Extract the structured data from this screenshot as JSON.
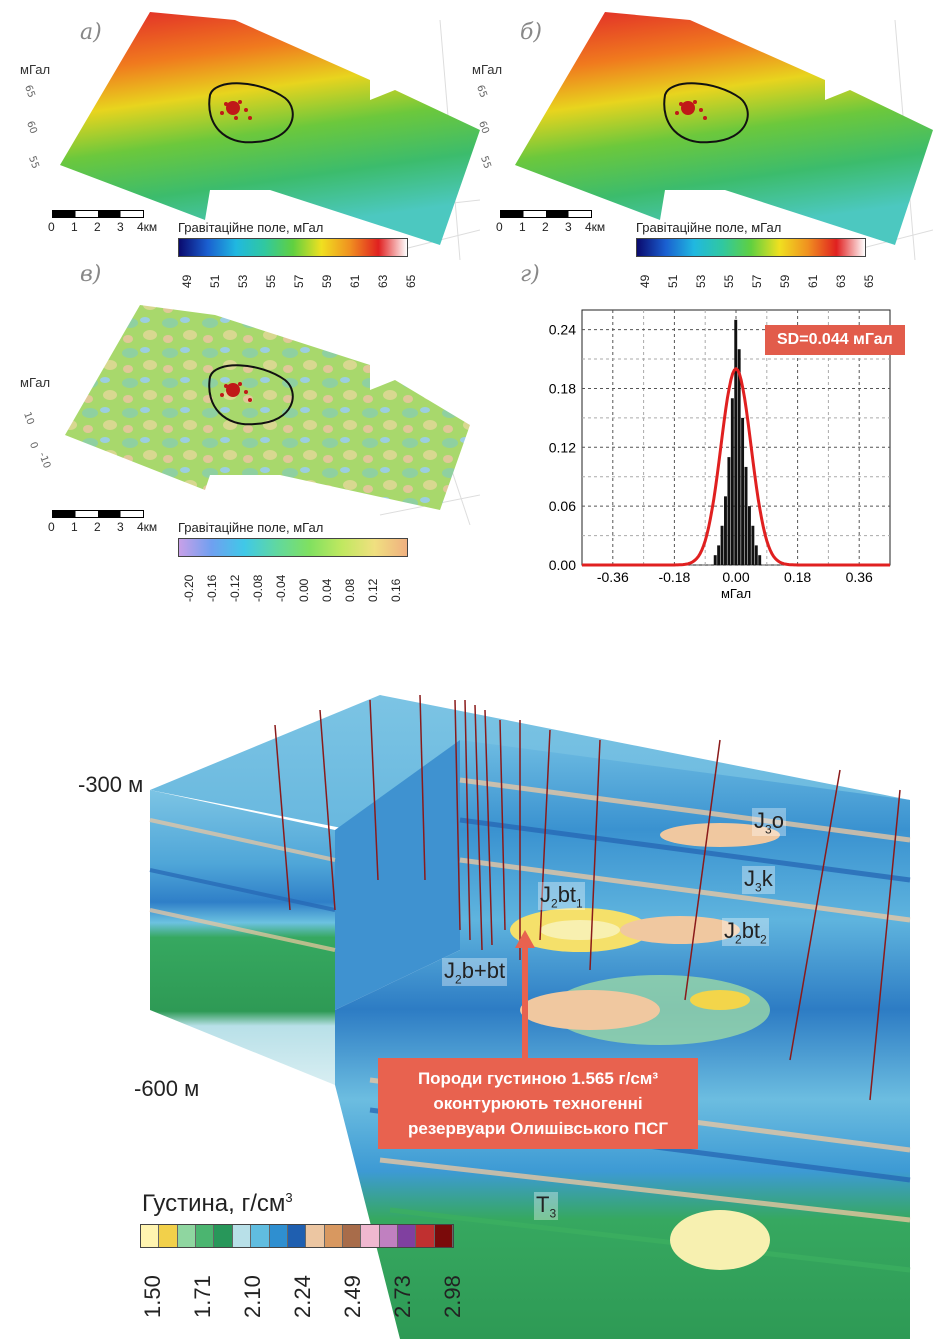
{
  "panel_labels": {
    "a": "а)",
    "b": "б)",
    "c": "в)",
    "d": "г)"
  },
  "units": {
    "mgal": "мГал"
  },
  "z_ticks_ab": [
    "65",
    "60",
    "55"
  ],
  "z_ticks_c": [
    "10",
    "0",
    "-10"
  ],
  "scale_bar": {
    "labels": [
      "0",
      "1",
      "2",
      "3",
      "4км"
    ]
  },
  "colorbar_gravity": {
    "title": "Гравітаційне поле, мГал",
    "ticks": [
      "49",
      "51",
      "53",
      "55",
      "57",
      "59",
      "61",
      "63",
      "65"
    ],
    "colors": [
      "#0a0a6e",
      "#1a5fd0",
      "#20b8e0",
      "#30c8a0",
      "#60d040",
      "#f0e020",
      "#f09020",
      "#e02020",
      "#ffffff"
    ]
  },
  "colorbar_residual": {
    "title": "Гравітаційне поле, мГал",
    "ticks": [
      "-0.20",
      "-0.16",
      "-0.12",
      "-0.08",
      "-0.04",
      "0.00",
      "0.04",
      "0.08",
      "0.12",
      "0.16"
    ],
    "colors": [
      "#c8a0e8",
      "#6fa0f0",
      "#40c8e8",
      "#60d8a0",
      "#80e060",
      "#c0e860",
      "#f0e080",
      "#f0b080"
    ]
  },
  "chart_data": {
    "type": "bar",
    "title": "",
    "xlabel": "мГал",
    "ylabel": "",
    "xlim": [
      -0.45,
      0.45
    ],
    "ylim": [
      0,
      0.26
    ],
    "x_ticks": [
      "-0.36",
      "-0.18",
      "0.00",
      "0.18",
      "0.36"
    ],
    "x_tick_values": [
      -0.36,
      -0.18,
      0.0,
      0.18,
      0.36
    ],
    "y_ticks": [
      "0.00",
      "0.06",
      "0.12",
      "0.18",
      "0.24"
    ],
    "y_tick_values": [
      0.0,
      0.06,
      0.12,
      0.18,
      0.24
    ],
    "bin_width": 0.01,
    "bins_center": [
      -0.06,
      -0.05,
      -0.04,
      -0.03,
      -0.02,
      -0.01,
      0.0,
      0.01,
      0.02,
      0.03,
      0.04,
      0.05,
      0.06,
      0.07
    ],
    "values": [
      0.01,
      0.02,
      0.04,
      0.07,
      0.11,
      0.17,
      0.25,
      0.22,
      0.15,
      0.1,
      0.06,
      0.04,
      0.02,
      0.01
    ],
    "fit_curve": {
      "type": "gaussian",
      "mean": 0.0,
      "sd": 0.044,
      "peak": 0.2
    },
    "annotation": "SD=0.044 мГал",
    "grid": true
  },
  "model3d": {
    "depth_labels": [
      "-300 м",
      "-600 м"
    ],
    "strata": [
      {
        "main": "J",
        "sub": "3",
        "rest": "o",
        "restsub": ""
      },
      {
        "main": "J",
        "sub": "3",
        "rest": "k",
        "restsub": ""
      },
      {
        "main": "J",
        "sub": "2",
        "rest": "bt",
        "restsub": "1"
      },
      {
        "main": "J",
        "sub": "2",
        "rest": "bt",
        "restsub": "2"
      },
      {
        "main": "J",
        "sub": "2",
        "rest": "b+bt",
        "restsub": ""
      },
      {
        "main": "T",
        "sub": "3",
        "rest": "",
        "restsub": ""
      }
    ],
    "callout": [
      "Породи густиною 1.565 г/см³",
      "оконтурюють техногенні",
      "резервуари Олишівського ПСГ"
    ]
  },
  "density_legend": {
    "title": "Густина, г/см",
    "title_sup": "3",
    "ticks": [
      "1.50",
      "1.71",
      "2.10",
      "2.24",
      "2.49",
      "2.73",
      "2.98"
    ],
    "colors": [
      "#fff4b0",
      "#f2d04a",
      "#8fd6a0",
      "#4bb570",
      "#28975a",
      "#b8e0e8",
      "#60bde0",
      "#2f8fd0",
      "#1f5fb0",
      "#ecc6a2",
      "#d89860",
      "#a86c4a",
      "#f0b8d0",
      "#c080c0",
      "#8040a0",
      "#c03030",
      "#7a0a0a"
    ]
  },
  "colors": {
    "accent_red": "#e25c4b",
    "callout_red": "#e8624f"
  }
}
